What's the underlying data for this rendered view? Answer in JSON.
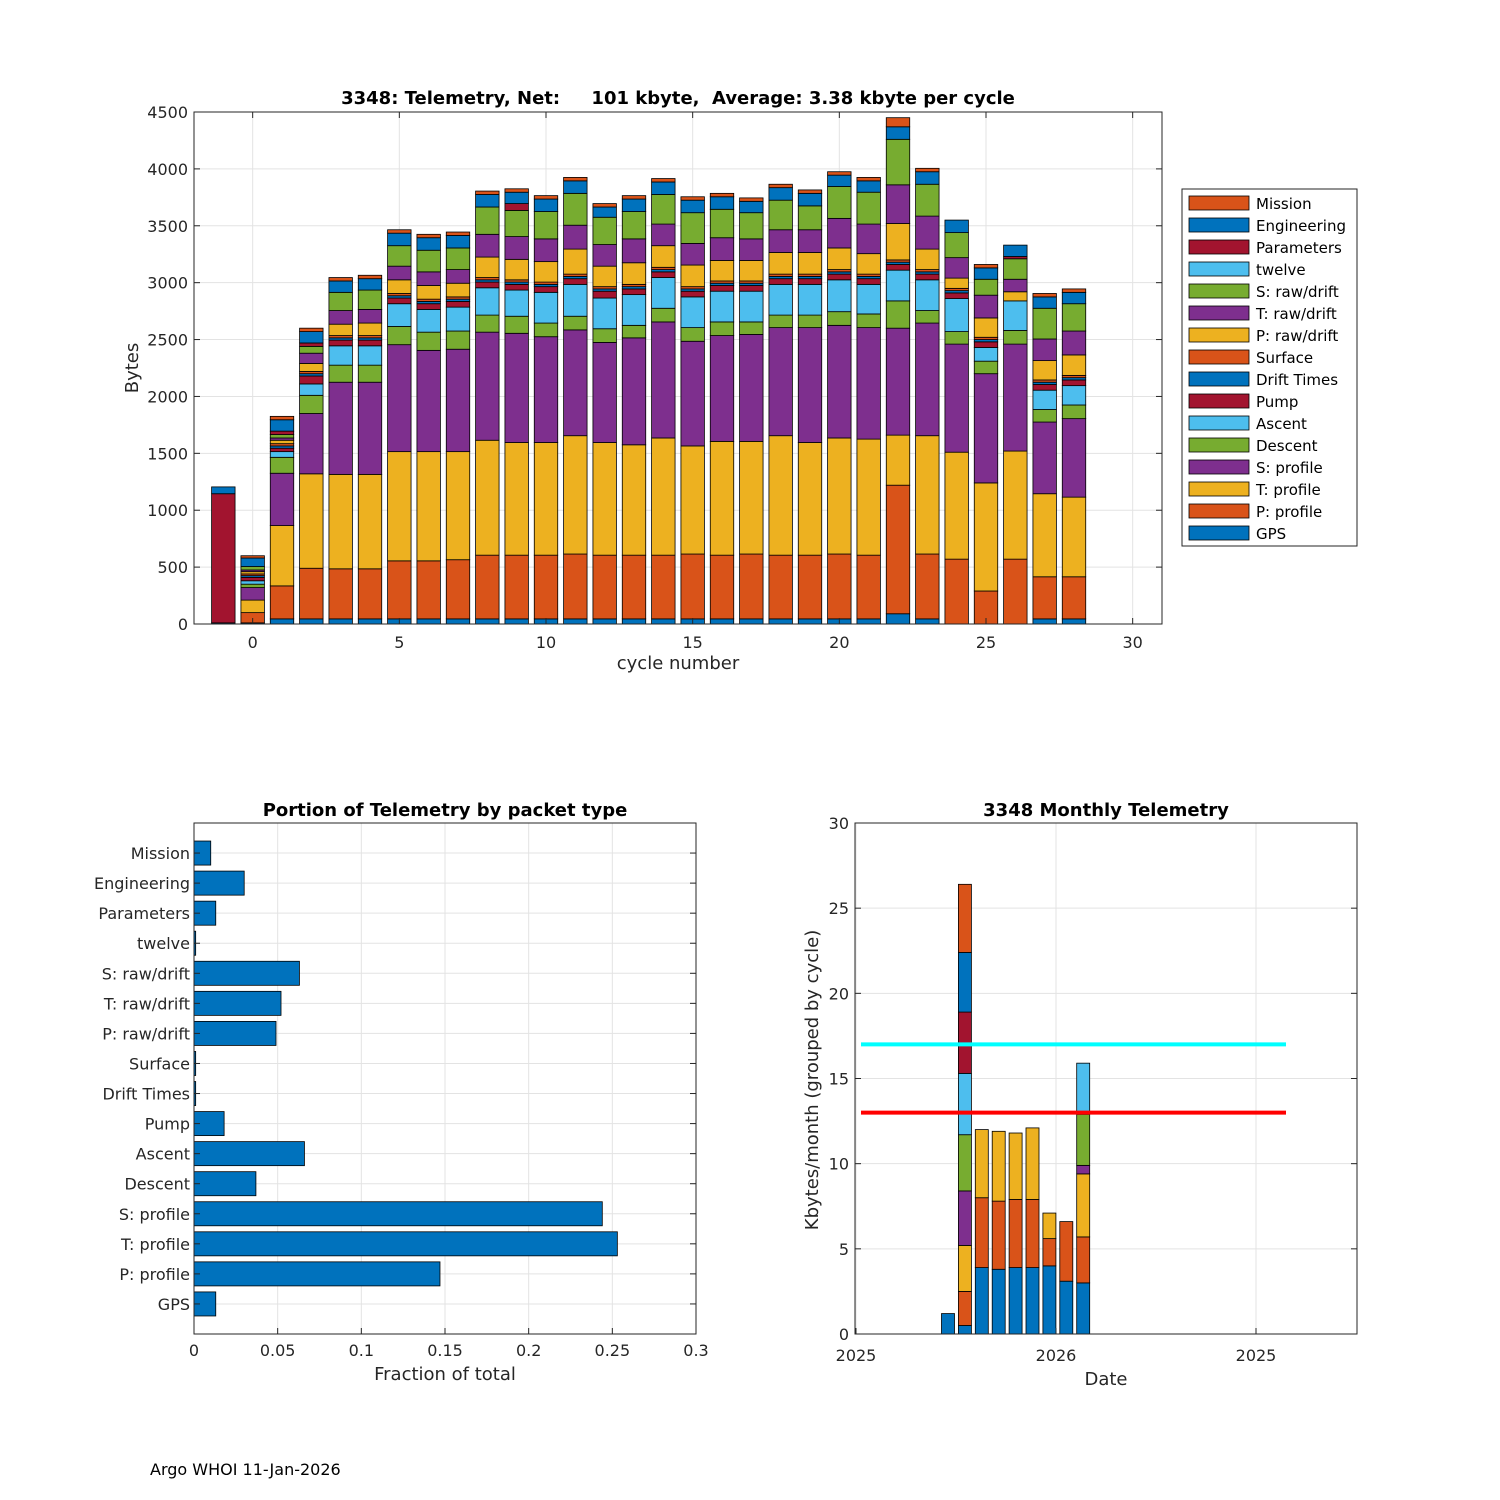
{
  "footer": "Argo WHOI 11-Jan-2026",
  "colors": {
    "blue": "#0072BD",
    "orange": "#D95319",
    "yellow": "#EDB120",
    "purple": "#7E2F8E",
    "green": "#77AC30",
    "cyan": "#4DBEEE",
    "red": "#A2142F",
    "ref_cyan": "#00FFFF",
    "ref_red": "#FF0000"
  },
  "chart_data": [
    {
      "type": "bar",
      "stacked": true,
      "title": "3348: Telemetry, Net:     101 kbyte,  Average: 3.38 kbyte per cycle",
      "xlabel": "cycle number",
      "ylabel": "Bytes",
      "xlim": [
        -2,
        31
      ],
      "ylim": [
        0,
        4500
      ],
      "xticks": [
        0,
        5,
        10,
        15,
        20,
        25,
        30
      ],
      "yticks": [
        0,
        500,
        1000,
        1500,
        2000,
        2500,
        3000,
        3500,
        4000,
        4500
      ],
      "grid": true,
      "legend_position": "outside-right",
      "packet_types": [
        "GPS",
        "P: profile",
        "T: profile",
        "S: profile",
        "Descent",
        "Ascent",
        "Pump",
        "Drift Times",
        "Surface",
        "P: raw/drift",
        "T: raw/drift",
        "S: raw/drift",
        "twelve",
        "Parameters",
        "Engineering",
        "Mission"
      ],
      "legend_order": [
        "Mission",
        "Engineering",
        "Parameters",
        "twelve",
        "S: raw/drift",
        "T: raw/drift",
        "P: raw/drift",
        "Surface",
        "Drift Times",
        "Pump",
        "Ascent",
        "Descent",
        "S: profile",
        "T: profile",
        "P: profile",
        "GPS"
      ],
      "series_colors": [
        "blue",
        "orange",
        "yellow",
        "purple",
        "green",
        "cyan",
        "red",
        "blue",
        "orange",
        "yellow",
        "purple",
        "green",
        "cyan",
        "red",
        "blue",
        "orange"
      ],
      "cycles": [
        {
          "cycle": -1,
          "values": [
            10,
            0,
            0,
            0,
            0,
            0,
            1135,
            0,
            0,
            0,
            0,
            0,
            0,
            0,
            60,
            0
          ]
        },
        {
          "cycle": 0,
          "values": [
            10,
            90,
            110,
            110,
            30,
            30,
            30,
            15,
            15,
            20,
            15,
            30,
            0,
            0,
            75,
            20
          ]
        },
        {
          "cycle": 1,
          "values": [
            45,
            290,
            530,
            460,
            140,
            50,
            30,
            20,
            20,
            30,
            20,
            30,
            0,
            30,
            100,
            30
          ]
        },
        {
          "cycle": 2,
          "values": [
            45,
            445,
            830,
            530,
            160,
            100,
            70,
            20,
            20,
            70,
            90,
            60,
            0,
            30,
            100,
            30
          ]
        },
        {
          "cycle": 3,
          "values": [
            45,
            440,
            830,
            810,
            150,
            170,
            50,
            20,
            20,
            100,
            120,
            160,
            0,
            0,
            100,
            30
          ]
        },
        {
          "cycle": 4,
          "values": [
            45,
            440,
            830,
            810,
            150,
            170,
            50,
            20,
            20,
            110,
            120,
            170,
            0,
            0,
            100,
            30
          ]
        },
        {
          "cycle": 5,
          "values": [
            45,
            510,
            960,
            940,
            160,
            200,
            50,
            20,
            20,
            120,
            120,
            180,
            0,
            0,
            110,
            30
          ]
        },
        {
          "cycle": 6,
          "values": [
            45,
            510,
            960,
            890,
            160,
            200,
            50,
            20,
            20,
            120,
            120,
            190,
            0,
            0,
            110,
            30
          ]
        },
        {
          "cycle": 7,
          "values": [
            45,
            520,
            950,
            900,
            160,
            210,
            50,
            20,
            20,
            120,
            120,
            190,
            0,
            0,
            110,
            30
          ]
        },
        {
          "cycle": 8,
          "values": [
            45,
            560,
            1010,
            950,
            150,
            240,
            50,
            20,
            20,
            180,
            200,
            240,
            0,
            0,
            110,
            30
          ]
        },
        {
          "cycle": 9,
          "values": [
            45,
            560,
            990,
            960,
            150,
            230,
            50,
            20,
            20,
            180,
            200,
            230,
            0,
            60,
            100,
            30
          ]
        },
        {
          "cycle": 10,
          "values": [
            45,
            560,
            990,
            930,
            120,
            270,
            50,
            20,
            20,
            180,
            200,
            240,
            0,
            0,
            110,
            30
          ]
        },
        {
          "cycle": 11,
          "values": [
            45,
            570,
            1040,
            930,
            120,
            280,
            50,
            20,
            20,
            220,
            210,
            280,
            0,
            0,
            110,
            30
          ]
        },
        {
          "cycle": 12,
          "values": [
            45,
            560,
            990,
            880,
            120,
            270,
            60,
            20,
            20,
            180,
            190,
            240,
            0,
            0,
            90,
            30
          ]
        },
        {
          "cycle": 13,
          "values": [
            45,
            560,
            970,
            940,
            110,
            270,
            50,
            20,
            20,
            190,
            210,
            240,
            0,
            0,
            110,
            30
          ]
        },
        {
          "cycle": 14,
          "values": [
            45,
            560,
            1030,
            1020,
            120,
            270,
            50,
            20,
            20,
            190,
            190,
            260,
            0,
            0,
            110,
            30
          ]
        },
        {
          "cycle": 15,
          "values": [
            45,
            570,
            950,
            920,
            120,
            270,
            50,
            20,
            20,
            190,
            190,
            270,
            0,
            0,
            110,
            30
          ]
        },
        {
          "cycle": 16,
          "values": [
            45,
            560,
            1000,
            930,
            120,
            270,
            50,
            20,
            20,
            180,
            200,
            250,
            0,
            0,
            110,
            30
          ]
        },
        {
          "cycle": 17,
          "values": [
            45,
            570,
            990,
            940,
            110,
            270,
            50,
            20,
            20,
            180,
            190,
            230,
            0,
            0,
            100,
            30
          ]
        },
        {
          "cycle": 18,
          "values": [
            45,
            560,
            1050,
            950,
            110,
            270,
            50,
            20,
            20,
            190,
            200,
            260,
            0,
            0,
            110,
            30
          ]
        },
        {
          "cycle": 19,
          "values": [
            45,
            560,
            990,
            1010,
            110,
            270,
            50,
            20,
            20,
            190,
            200,
            210,
            0,
            0,
            110,
            30
          ]
        },
        {
          "cycle": 20,
          "values": [
            45,
            570,
            1020,
            990,
            120,
            280,
            50,
            20,
            20,
            190,
            260,
            280,
            0,
            0,
            100,
            30
          ]
        },
        {
          "cycle": 21,
          "values": [
            45,
            560,
            1020,
            980,
            120,
            260,
            50,
            20,
            20,
            180,
            260,
            280,
            0,
            0,
            100,
            30
          ]
        },
        {
          "cycle": 22,
          "values": [
            90,
            1130,
            440,
            940,
            240,
            270,
            50,
            20,
            20,
            320,
            340,
            400,
            0,
            0,
            110,
            80
          ]
        },
        {
          "cycle": 23,
          "values": [
            45,
            570,
            1040,
            990,
            110,
            270,
            50,
            20,
            20,
            180,
            290,
            280,
            0,
            0,
            110,
            30
          ]
        },
        {
          "cycle": 24,
          "values": [
            0,
            570,
            940,
            950,
            110,
            290,
            50,
            20,
            20,
            90,
            180,
            220,
            0,
            0,
            110,
            0
          ]
        },
        {
          "cycle": 25,
          "values": [
            0,
            290,
            950,
            960,
            110,
            120,
            50,
            20,
            20,
            170,
            200,
            140,
            0,
            0,
            100,
            30
          ]
        },
        {
          "cycle": 26,
          "values": [
            0,
            570,
            950,
            940,
            120,
            260,
            0,
            0,
            0,
            80,
            110,
            180,
            0,
            20,
            100,
            0
          ]
        },
        {
          "cycle": 27,
          "values": [
            45,
            370,
            730,
            630,
            110,
            170,
            50,
            20,
            20,
            170,
            190,
            270,
            0,
            0,
            100,
            30
          ]
        },
        {
          "cycle": 28,
          "values": [
            45,
            370,
            700,
            690,
            120,
            170,
            50,
            20,
            20,
            180,
            210,
            240,
            0,
            0,
            100,
            30
          ]
        }
      ]
    },
    {
      "type": "bar",
      "orientation": "horizontal",
      "title": "Portion of Telemetry by packet type",
      "xlabel": "Fraction of total",
      "xlim": [
        0,
        0.3
      ],
      "xticks": [
        "0",
        "0.05",
        "0.1",
        "0.15",
        "0.2",
        "0.25",
        "0.3"
      ],
      "grid": true,
      "categories": [
        "GPS",
        "P: profile",
        "T: profile",
        "S: profile",
        "Descent",
        "Ascent",
        "Pump",
        "Drift Times",
        "Surface",
        "P: raw/drift",
        "T: raw/drift",
        "S: raw/drift",
        "twelve",
        "Parameters",
        "Engineering",
        "Mission"
      ],
      "values": [
        0.013,
        0.147,
        0.253,
        0.244,
        0.037,
        0.066,
        0.018,
        0.001,
        0.001,
        0.049,
        0.052,
        0.063,
        0.001,
        0.013,
        0.03,
        0.01
      ]
    },
    {
      "type": "bar",
      "stacked": true,
      "title": "3348 Monthly Telemetry",
      "xlabel": "Date",
      "ylabel": "Kbytes/month (grouped by cycle)",
      "ylim": [
        0,
        30
      ],
      "yticks": [
        0,
        5,
        10,
        15,
        20,
        25,
        30
      ],
      "x_tick_labels": [
        "2025",
        "2026",
        "2025"
      ],
      "grid": true,
      "reference_lines": [
        {
          "value": 17,
          "color": "ref_cyan"
        },
        {
          "value": 13,
          "color": "ref_red"
        }
      ],
      "segment_colors": [
        "blue",
        "orange",
        "yellow",
        "purple",
        "green",
        "cyan",
        "red",
        "blue",
        "orange"
      ],
      "bars": [
        {
          "segments": [
            1.2
          ]
        },
        {
          "segments": [
            0.5,
            2.0,
            2.7,
            3.2,
            3.3,
            3.6,
            3.6,
            3.5,
            4.0
          ]
        },
        {
          "segments": [
            3.9,
            4.1,
            4.0
          ]
        },
        {
          "segments": [
            3.8,
            4.0,
            4.1
          ]
        },
        {
          "segments": [
            3.9,
            4.0,
            3.9
          ]
        },
        {
          "segments": [
            3.9,
            4.0,
            4.2
          ]
        },
        {
          "segments": [
            4.0,
            1.6,
            1.5
          ]
        },
        {
          "segments": [
            3.1,
            3.5
          ]
        },
        {
          "segments": [
            3.0,
            2.7,
            3.7,
            0.5,
            3.0,
            3.0
          ]
        }
      ]
    }
  ]
}
